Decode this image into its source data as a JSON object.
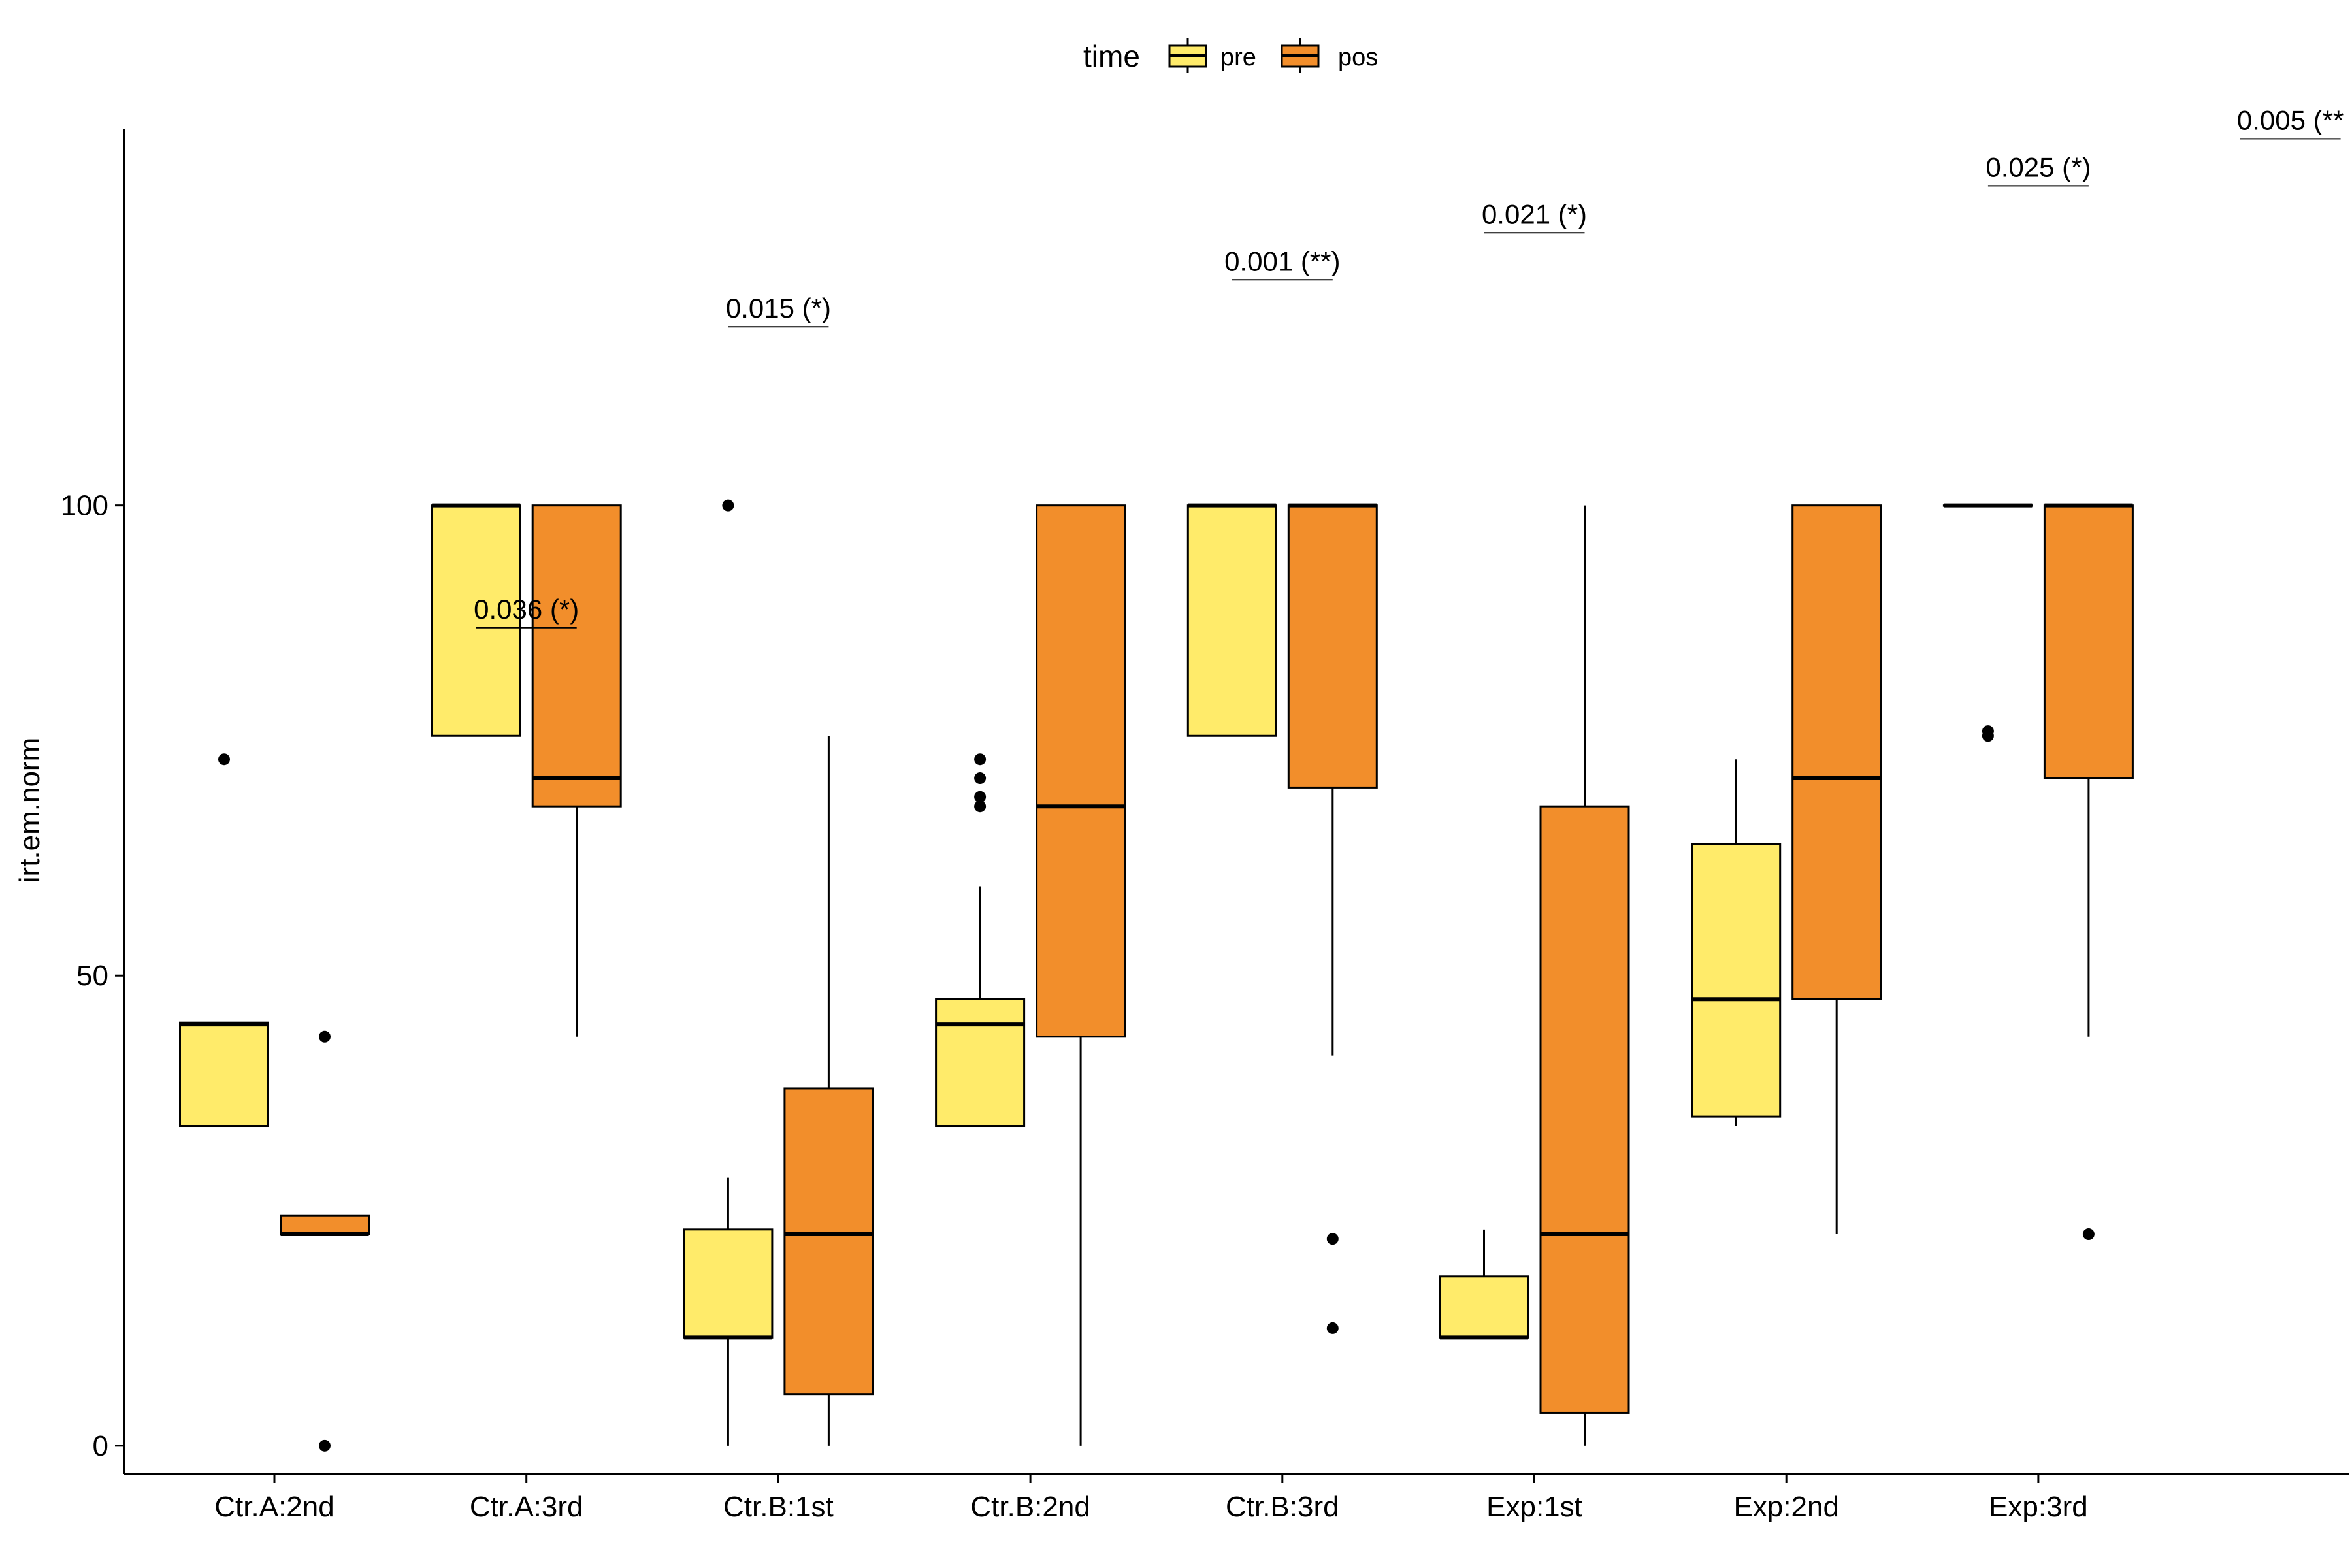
{
  "chart_data": {
    "type": "box",
    "xlabel": "",
    "ylabel": "irt.em.norm",
    "ylim": [
      -3,
      140
    ],
    "yticks": [
      0,
      50,
      100
    ],
    "categories": [
      "Ctr.A:2nd",
      "Ctr.A:3rd",
      "Ctr.B:1st",
      "Ctr.B:2nd",
      "Ctr.B:3rd",
      "Exp:1st",
      "Exp:2nd",
      "Exp:3rd"
    ],
    "legend": {
      "title": "time",
      "position": "top",
      "items": [
        {
          "label": "pre",
          "color": "#FFEB6A"
        },
        {
          "label": "pos",
          "color": "#F28E2B"
        }
      ]
    },
    "series": [
      {
        "name": "pre",
        "color": "#FFEB6A",
        "boxes": [
          {
            "q1": 34,
            "median": 44.8,
            "q3": 45,
            "whisker_low": 34,
            "whisker_high": 45,
            "outliers": [
              73
            ]
          },
          {
            "q1": 75.5,
            "median": 100,
            "q3": 100,
            "whisker_low": 75.5,
            "whisker_high": 100,
            "outliers": []
          },
          {
            "q1": 11.5,
            "median": 11.5,
            "q3": 23,
            "whisker_low": 0,
            "whisker_high": 28.5,
            "outliers": [
              100
            ]
          },
          {
            "q1": 34,
            "median": 44.8,
            "q3": 47.5,
            "whisker_low": 34,
            "whisker_high": 59.5,
            "outliers": [
              68,
              69,
              71,
              73
            ]
          },
          {
            "q1": 75.5,
            "median": 100,
            "q3": 100,
            "whisker_low": 75.5,
            "whisker_high": 100,
            "outliers": []
          },
          {
            "q1": 11.5,
            "median": 11.5,
            "q3": 18,
            "whisker_low": 11.5,
            "whisker_high": 23,
            "outliers": []
          },
          {
            "q1": 35,
            "median": 47.5,
            "q3": 64,
            "whisker_low": 34,
            "whisker_high": 73,
            "outliers": []
          },
          {
            "q1": 100,
            "median": 100,
            "q3": 100,
            "whisker_low": 100,
            "whisker_high": 100,
            "outliers": [
              75.5,
              76
            ]
          }
        ]
      },
      {
        "name": "pos",
        "color": "#F28E2B",
        "boxes": [
          {
            "q1": 22.5,
            "median": 22.5,
            "q3": 24.5,
            "whisker_low": 22.5,
            "whisker_high": 24.5,
            "outliers": [
              0,
              43.5
            ]
          },
          {
            "q1": 68,
            "median": 71,
            "q3": 100,
            "whisker_low": 43.5,
            "whisker_high": 100,
            "outliers": []
          },
          {
            "q1": 5.5,
            "median": 22.5,
            "q3": 38,
            "whisker_low": 0,
            "whisker_high": 75.5,
            "outliers": []
          },
          {
            "q1": 43.5,
            "median": 68,
            "q3": 100,
            "whisker_low": 0,
            "whisker_high": 100,
            "outliers": []
          },
          {
            "q1": 70,
            "median": 100,
            "q3": 100,
            "whisker_low": 41.5,
            "whisker_high": 100,
            "outliers": [
              12.5,
              22
            ]
          },
          {
            "q1": 3.5,
            "median": 22.5,
            "q3": 68,
            "whisker_low": 0,
            "whisker_high": 100,
            "outliers": []
          },
          {
            "q1": 47.5,
            "median": 71,
            "q3": 100,
            "whisker_low": 22.5,
            "whisker_high": 100,
            "outliers": []
          },
          {
            "q1": 71,
            "median": 100,
            "q3": 100,
            "whisker_low": 43.5,
            "whisker_high": 100,
            "outliers": [
              22.5
            ]
          }
        ]
      }
    ],
    "annotations": [
      {
        "text": "0.036 (*)",
        "group": 1,
        "y": 87
      },
      {
        "text": "0.015 (*)",
        "group": 2,
        "y": 119
      },
      {
        "text": "0.001 (**)",
        "group": 4,
        "y": 124
      },
      {
        "text": "0.021 (*)",
        "group": 5,
        "y": 129
      },
      {
        "text": "0.025 (*)",
        "group": 7,
        "y": 134
      },
      {
        "text": "0.005 (**",
        "group": 8,
        "y": 139
      }
    ]
  }
}
